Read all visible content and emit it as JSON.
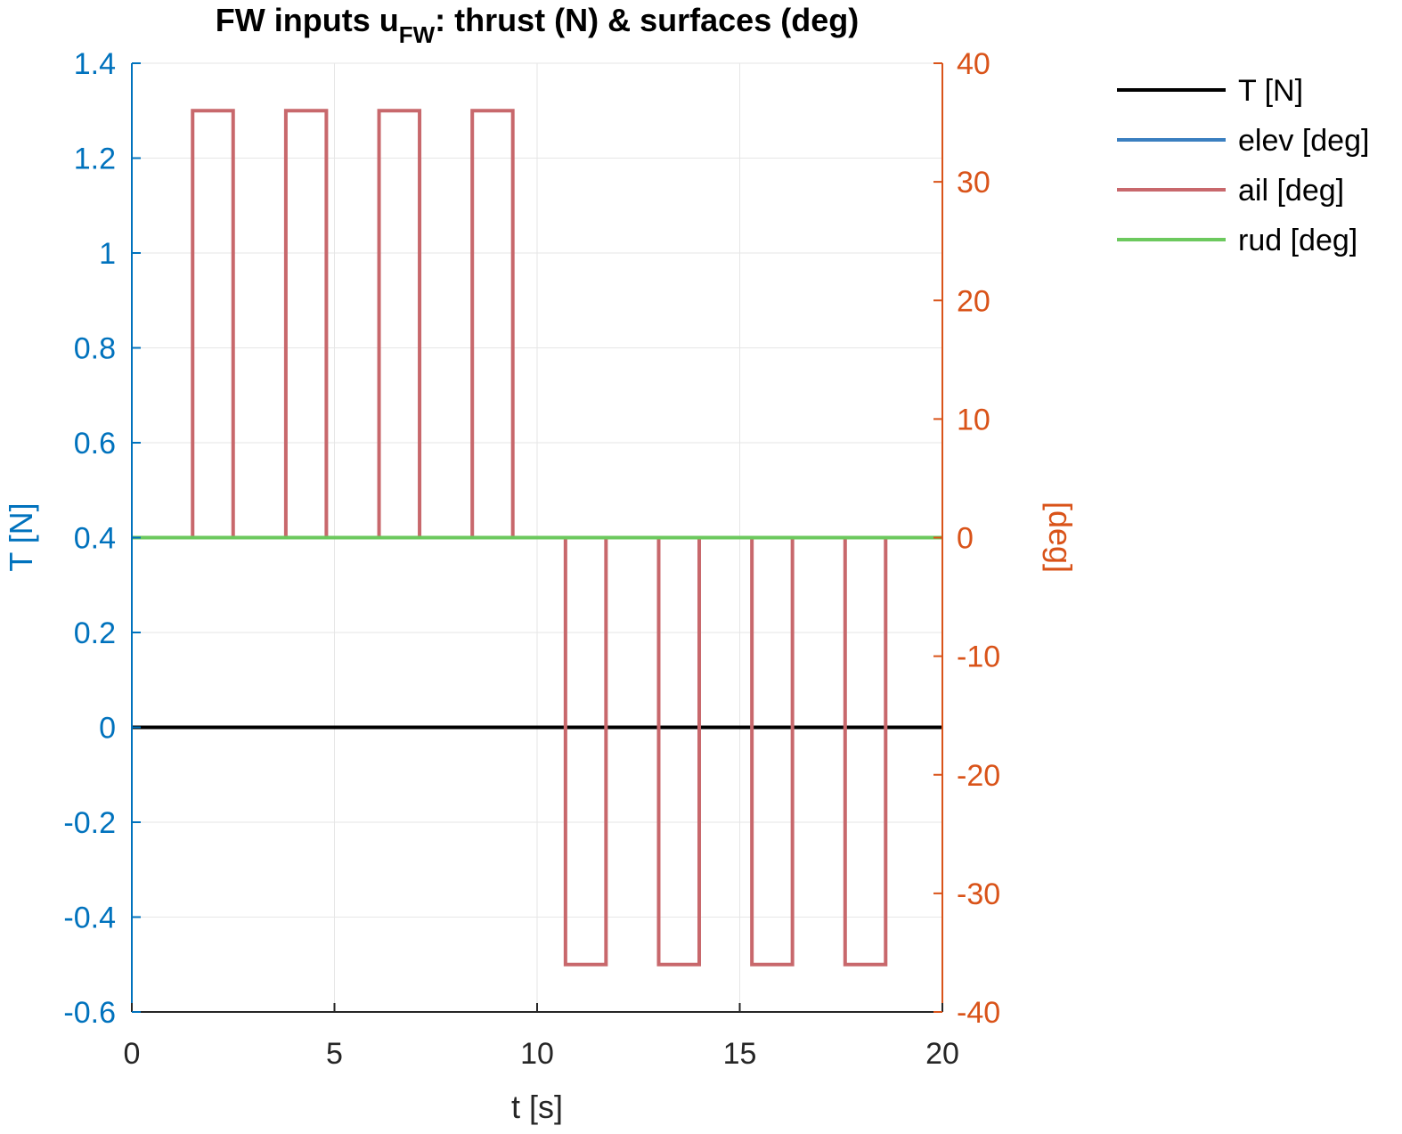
{
  "chart_data": {
    "type": "line",
    "title_main": "FW inputs u",
    "title_sub": "FW",
    "title_rest": ": thrust (N) & surfaces (deg)",
    "xlabel": "t [s]",
    "ylabel_left": "T [N]",
    "ylabel_right": "[deg]",
    "xlim": [
      0,
      20
    ],
    "ylim_left": [
      -0.6,
      1.4
    ],
    "ylim_right": [
      -40,
      40
    ],
    "xticks": [
      0,
      5,
      10,
      15,
      20
    ],
    "xtick_labels": [
      "0",
      "5",
      "10",
      "15",
      "20"
    ],
    "yticks_left": [
      -0.6,
      -0.4,
      -0.2,
      0,
      0.2,
      0.4,
      0.6,
      0.8,
      1,
      1.2,
      1.4
    ],
    "ytick_labels_left": [
      "-0.6",
      "-0.4",
      "-0.2",
      "0",
      "0.2",
      "0.4",
      "0.6",
      "0.8",
      "1",
      "1.2",
      "1.4"
    ],
    "yticks_right": [
      -40,
      -30,
      -20,
      -10,
      0,
      10,
      20,
      30,
      40
    ],
    "ytick_labels_right": [
      "-40",
      "-30",
      "-20",
      "-10",
      "0",
      "10",
      "20",
      "30",
      "40"
    ],
    "grid": true,
    "legend_position": "outside-top-right",
    "colors": {
      "left_axis": "#0072BD",
      "right_axis": "#D95319",
      "grid": "#e6e6e6"
    },
    "series": [
      {
        "name": "T [N]",
        "axis": "left",
        "color": "#000000",
        "x": [
          0,
          20
        ],
        "y": [
          0,
          0
        ]
      },
      {
        "name": "elev [deg]",
        "axis": "right",
        "color": "#3a7fc0",
        "x": [
          0,
          20
        ],
        "y": [
          0,
          0
        ]
      },
      {
        "name": "ail [deg]",
        "axis": "right",
        "color": "#c8686c",
        "x": [
          0,
          1.5,
          1.5,
          2.5,
          2.5,
          3.8,
          3.8,
          4.8,
          4.8,
          6.1,
          6.1,
          7.1,
          7.1,
          8.4,
          8.4,
          9.4,
          9.4,
          10.7,
          10.7,
          11.7,
          11.7,
          13.0,
          13.0,
          14.0,
          14.0,
          15.3,
          15.3,
          16.3,
          16.3,
          17.6,
          17.6,
          18.6,
          18.6,
          20
        ],
        "y": [
          0,
          0,
          36,
          36,
          0,
          0,
          36,
          36,
          0,
          0,
          36,
          36,
          0,
          0,
          36,
          36,
          0,
          0,
          -36,
          -36,
          0,
          0,
          -36,
          -36,
          0,
          0,
          -36,
          -36,
          0,
          0,
          -36,
          -36,
          0,
          0
        ]
      },
      {
        "name": "rud [deg]",
        "axis": "right",
        "color": "#6cc95e",
        "x": [
          0,
          20
        ],
        "y": [
          0,
          0
        ]
      }
    ]
  }
}
